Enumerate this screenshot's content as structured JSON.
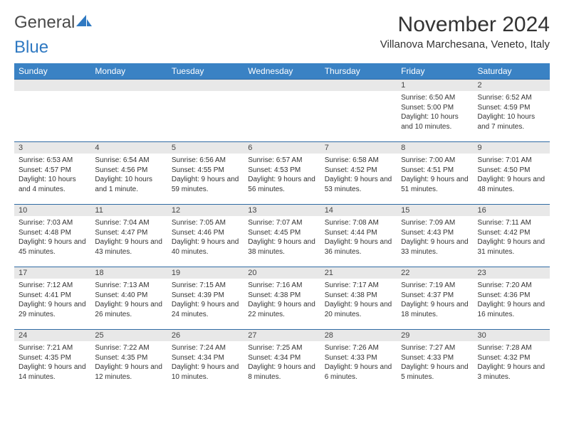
{
  "brand": {
    "word1": "General",
    "word2": "Blue"
  },
  "title": "November 2024",
  "location": "Villanova Marchesana, Veneto, Italy",
  "colors": {
    "header_bg": "#3a82c4",
    "header_text": "#ffffff",
    "daynum_bg": "#e8e8e8",
    "border": "#2f6aa3",
    "brand_gray": "#4a4a4a",
    "brand_blue": "#2f79c2"
  },
  "day_headers": [
    "Sunday",
    "Monday",
    "Tuesday",
    "Wednesday",
    "Thursday",
    "Friday",
    "Saturday"
  ],
  "weeks": [
    [
      {
        "n": "",
        "lines": []
      },
      {
        "n": "",
        "lines": []
      },
      {
        "n": "",
        "lines": []
      },
      {
        "n": "",
        "lines": []
      },
      {
        "n": "",
        "lines": []
      },
      {
        "n": "1",
        "lines": [
          "Sunrise: 6:50 AM",
          "Sunset: 5:00 PM",
          "Daylight: 10 hours and 10 minutes."
        ]
      },
      {
        "n": "2",
        "lines": [
          "Sunrise: 6:52 AM",
          "Sunset: 4:59 PM",
          "Daylight: 10 hours and 7 minutes."
        ]
      }
    ],
    [
      {
        "n": "3",
        "lines": [
          "Sunrise: 6:53 AM",
          "Sunset: 4:57 PM",
          "Daylight: 10 hours and 4 minutes."
        ]
      },
      {
        "n": "4",
        "lines": [
          "Sunrise: 6:54 AM",
          "Sunset: 4:56 PM",
          "Daylight: 10 hours and 1 minute."
        ]
      },
      {
        "n": "5",
        "lines": [
          "Sunrise: 6:56 AM",
          "Sunset: 4:55 PM",
          "Daylight: 9 hours and 59 minutes."
        ]
      },
      {
        "n": "6",
        "lines": [
          "Sunrise: 6:57 AM",
          "Sunset: 4:53 PM",
          "Daylight: 9 hours and 56 minutes."
        ]
      },
      {
        "n": "7",
        "lines": [
          "Sunrise: 6:58 AM",
          "Sunset: 4:52 PM",
          "Daylight: 9 hours and 53 minutes."
        ]
      },
      {
        "n": "8",
        "lines": [
          "Sunrise: 7:00 AM",
          "Sunset: 4:51 PM",
          "Daylight: 9 hours and 51 minutes."
        ]
      },
      {
        "n": "9",
        "lines": [
          "Sunrise: 7:01 AM",
          "Sunset: 4:50 PM",
          "Daylight: 9 hours and 48 minutes."
        ]
      }
    ],
    [
      {
        "n": "10",
        "lines": [
          "Sunrise: 7:03 AM",
          "Sunset: 4:48 PM",
          "Daylight: 9 hours and 45 minutes."
        ]
      },
      {
        "n": "11",
        "lines": [
          "Sunrise: 7:04 AM",
          "Sunset: 4:47 PM",
          "Daylight: 9 hours and 43 minutes."
        ]
      },
      {
        "n": "12",
        "lines": [
          "Sunrise: 7:05 AM",
          "Sunset: 4:46 PM",
          "Daylight: 9 hours and 40 minutes."
        ]
      },
      {
        "n": "13",
        "lines": [
          "Sunrise: 7:07 AM",
          "Sunset: 4:45 PM",
          "Daylight: 9 hours and 38 minutes."
        ]
      },
      {
        "n": "14",
        "lines": [
          "Sunrise: 7:08 AM",
          "Sunset: 4:44 PM",
          "Daylight: 9 hours and 36 minutes."
        ]
      },
      {
        "n": "15",
        "lines": [
          "Sunrise: 7:09 AM",
          "Sunset: 4:43 PM",
          "Daylight: 9 hours and 33 minutes."
        ]
      },
      {
        "n": "16",
        "lines": [
          "Sunrise: 7:11 AM",
          "Sunset: 4:42 PM",
          "Daylight: 9 hours and 31 minutes."
        ]
      }
    ],
    [
      {
        "n": "17",
        "lines": [
          "Sunrise: 7:12 AM",
          "Sunset: 4:41 PM",
          "Daylight: 9 hours and 29 minutes."
        ]
      },
      {
        "n": "18",
        "lines": [
          "Sunrise: 7:13 AM",
          "Sunset: 4:40 PM",
          "Daylight: 9 hours and 26 minutes."
        ]
      },
      {
        "n": "19",
        "lines": [
          "Sunrise: 7:15 AM",
          "Sunset: 4:39 PM",
          "Daylight: 9 hours and 24 minutes."
        ]
      },
      {
        "n": "20",
        "lines": [
          "Sunrise: 7:16 AM",
          "Sunset: 4:38 PM",
          "Daylight: 9 hours and 22 minutes."
        ]
      },
      {
        "n": "21",
        "lines": [
          "Sunrise: 7:17 AM",
          "Sunset: 4:38 PM",
          "Daylight: 9 hours and 20 minutes."
        ]
      },
      {
        "n": "22",
        "lines": [
          "Sunrise: 7:19 AM",
          "Sunset: 4:37 PM",
          "Daylight: 9 hours and 18 minutes."
        ]
      },
      {
        "n": "23",
        "lines": [
          "Sunrise: 7:20 AM",
          "Sunset: 4:36 PM",
          "Daylight: 9 hours and 16 minutes."
        ]
      }
    ],
    [
      {
        "n": "24",
        "lines": [
          "Sunrise: 7:21 AM",
          "Sunset: 4:35 PM",
          "Daylight: 9 hours and 14 minutes."
        ]
      },
      {
        "n": "25",
        "lines": [
          "Sunrise: 7:22 AM",
          "Sunset: 4:35 PM",
          "Daylight: 9 hours and 12 minutes."
        ]
      },
      {
        "n": "26",
        "lines": [
          "Sunrise: 7:24 AM",
          "Sunset: 4:34 PM",
          "Daylight: 9 hours and 10 minutes."
        ]
      },
      {
        "n": "27",
        "lines": [
          "Sunrise: 7:25 AM",
          "Sunset: 4:34 PM",
          "Daylight: 9 hours and 8 minutes."
        ]
      },
      {
        "n": "28",
        "lines": [
          "Sunrise: 7:26 AM",
          "Sunset: 4:33 PM",
          "Daylight: 9 hours and 6 minutes."
        ]
      },
      {
        "n": "29",
        "lines": [
          "Sunrise: 7:27 AM",
          "Sunset: 4:33 PM",
          "Daylight: 9 hours and 5 minutes."
        ]
      },
      {
        "n": "30",
        "lines": [
          "Sunrise: 7:28 AM",
          "Sunset: 4:32 PM",
          "Daylight: 9 hours and 3 minutes."
        ]
      }
    ]
  ]
}
